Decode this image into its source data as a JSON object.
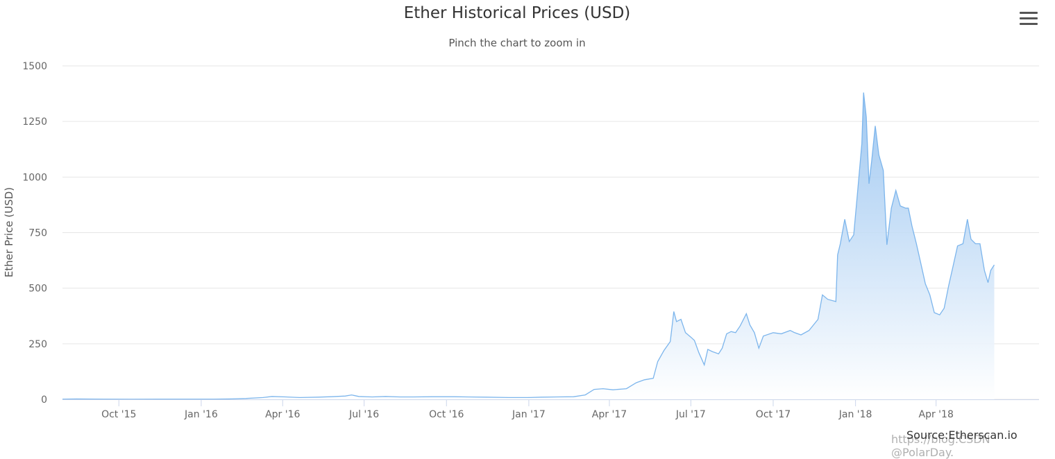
{
  "header": {
    "title": "Ether Historical Prices (USD)",
    "subtitle": "Pinch the chart to zoom in",
    "menu_icon": "hamburger-menu-icon"
  },
  "footer": {
    "credits": "Source:Etherscan.io",
    "watermark": "https://blog.CSDN @PolarDay."
  },
  "colors": {
    "line": "#7cb5ec",
    "fill_top": "#90bfef",
    "fill_bottom": "#ffffff",
    "grid": "#e6e6e6",
    "text": "#666666"
  },
  "chart_data": {
    "type": "area",
    "title": "Ether Historical Prices (USD)",
    "subtitle": "Pinch the chart to zoom in",
    "xlabel": "",
    "ylabel": "Ether Price (USD)",
    "ylim": [
      0,
      1500
    ],
    "yticks": [
      0,
      250,
      500,
      750,
      1000,
      1250,
      1500
    ],
    "ytick_labels": [
      "0",
      "250",
      "500",
      "750",
      "1000",
      "1250",
      "1500"
    ],
    "xlim": [
      "2015-07-30",
      "2018-07-25"
    ],
    "xticks": [
      {
        "label": "Oct '15",
        "date": "2015-10-01"
      },
      {
        "label": "Jan '16",
        "date": "2016-01-01"
      },
      {
        "label": "Apr '16",
        "date": "2016-04-01"
      },
      {
        "label": "Jul '16",
        "date": "2016-07-01"
      },
      {
        "label": "Oct '16",
        "date": "2016-10-01"
      },
      {
        "label": "Jan '17",
        "date": "2017-01-01"
      },
      {
        "label": "Apr '17",
        "date": "2017-04-01"
      },
      {
        "label": "Jul '17",
        "date": "2017-07-01"
      },
      {
        "label": "Oct '17",
        "date": "2017-10-01"
      },
      {
        "label": "Jan '18",
        "date": "2018-01-01"
      },
      {
        "label": "Apr '18",
        "date": "2018-04-01"
      }
    ],
    "grid": true,
    "legend": "none",
    "series": [
      {
        "name": "Ether Price (USD)",
        "points": [
          [
            "2015-07-30",
            1
          ],
          [
            "2015-08-15",
            2
          ],
          [
            "2015-09-15",
            1
          ],
          [
            "2015-10-15",
            0.5
          ],
          [
            "2015-11-15",
            1
          ],
          [
            "2015-12-15",
            1
          ],
          [
            "2016-01-15",
            1
          ],
          [
            "2016-02-01",
            2
          ],
          [
            "2016-02-20",
            4
          ],
          [
            "2016-03-10",
            8
          ],
          [
            "2016-03-20",
            13
          ],
          [
            "2016-04-05",
            11
          ],
          [
            "2016-04-20",
            8
          ],
          [
            "2016-05-10",
            10
          ],
          [
            "2016-05-25",
            12
          ],
          [
            "2016-06-10",
            15
          ],
          [
            "2016-06-17",
            20
          ],
          [
            "2016-06-25",
            13
          ],
          [
            "2016-07-10",
            11
          ],
          [
            "2016-07-25",
            13
          ],
          [
            "2016-08-10",
            11
          ],
          [
            "2016-08-25",
            11
          ],
          [
            "2016-09-15",
            12
          ],
          [
            "2016-10-10",
            12
          ],
          [
            "2016-10-25",
            11
          ],
          [
            "2016-11-15",
            10
          ],
          [
            "2016-12-10",
            8
          ],
          [
            "2016-12-31",
            8
          ],
          [
            "2017-01-15",
            10
          ],
          [
            "2017-02-01",
            11
          ],
          [
            "2017-02-20",
            12
          ],
          [
            "2017-03-05",
            20
          ],
          [
            "2017-03-15",
            45
          ],
          [
            "2017-03-25",
            48
          ],
          [
            "2017-04-05",
            43
          ],
          [
            "2017-04-20",
            48
          ],
          [
            "2017-05-01",
            75
          ],
          [
            "2017-05-10",
            88
          ],
          [
            "2017-05-20",
            95
          ],
          [
            "2017-05-25",
            170
          ],
          [
            "2017-06-01",
            220
          ],
          [
            "2017-06-08",
            260
          ],
          [
            "2017-06-12",
            395
          ],
          [
            "2017-06-15",
            350
          ],
          [
            "2017-06-20",
            360
          ],
          [
            "2017-06-25",
            300
          ],
          [
            "2017-07-01",
            280
          ],
          [
            "2017-07-05",
            265
          ],
          [
            "2017-07-10",
            210
          ],
          [
            "2017-07-16",
            155
          ],
          [
            "2017-07-20",
            225
          ],
          [
            "2017-07-25",
            215
          ],
          [
            "2017-08-01",
            205
          ],
          [
            "2017-08-05",
            230
          ],
          [
            "2017-08-10",
            295
          ],
          [
            "2017-08-15",
            305
          ],
          [
            "2017-08-20",
            300
          ],
          [
            "2017-08-25",
            330
          ],
          [
            "2017-09-01",
            385
          ],
          [
            "2017-09-05",
            335
          ],
          [
            "2017-09-10",
            300
          ],
          [
            "2017-09-15",
            230
          ],
          [
            "2017-09-20",
            285
          ],
          [
            "2017-10-01",
            300
          ],
          [
            "2017-10-10",
            295
          ],
          [
            "2017-10-20",
            310
          ],
          [
            "2017-10-25",
            300
          ],
          [
            "2017-11-01",
            290
          ],
          [
            "2017-11-10",
            310
          ],
          [
            "2017-11-20",
            360
          ],
          [
            "2017-11-25",
            470
          ],
          [
            "2017-12-01",
            450
          ],
          [
            "2017-12-10",
            440
          ],
          [
            "2017-12-12",
            650
          ],
          [
            "2017-12-15",
            700
          ],
          [
            "2017-12-20",
            810
          ],
          [
            "2017-12-25",
            710
          ],
          [
            "2017-12-30",
            740
          ],
          [
            "2018-01-03",
            920
          ],
          [
            "2018-01-08",
            1150
          ],
          [
            "2018-01-10",
            1380
          ],
          [
            "2018-01-13",
            1270
          ],
          [
            "2018-01-16",
            970
          ],
          [
            "2018-01-19",
            1070
          ],
          [
            "2018-01-23",
            1230
          ],
          [
            "2018-01-27",
            1100
          ],
          [
            "2018-02-01",
            1030
          ],
          [
            "2018-02-05",
            695
          ],
          [
            "2018-02-10",
            860
          ],
          [
            "2018-02-15",
            940
          ],
          [
            "2018-02-20",
            870
          ],
          [
            "2018-02-26",
            860
          ],
          [
            "2018-03-01",
            860
          ],
          [
            "2018-03-05",
            780
          ],
          [
            "2018-03-10",
            700
          ],
          [
            "2018-03-15",
            610
          ],
          [
            "2018-03-20",
            520
          ],
          [
            "2018-03-25",
            470
          ],
          [
            "2018-03-30",
            390
          ],
          [
            "2018-04-05",
            380
          ],
          [
            "2018-04-10",
            410
          ],
          [
            "2018-04-15",
            510
          ],
          [
            "2018-04-20",
            600
          ],
          [
            "2018-04-25",
            690
          ],
          [
            "2018-05-01",
            700
          ],
          [
            "2018-05-06",
            810
          ],
          [
            "2018-05-10",
            720
          ],
          [
            "2018-05-15",
            700
          ],
          [
            "2018-05-20",
            700
          ],
          [
            "2018-05-25",
            580
          ],
          [
            "2018-05-29",
            525
          ],
          [
            "2018-06-01",
            580
          ],
          [
            "2018-06-05",
            605
          ]
        ]
      }
    ]
  }
}
